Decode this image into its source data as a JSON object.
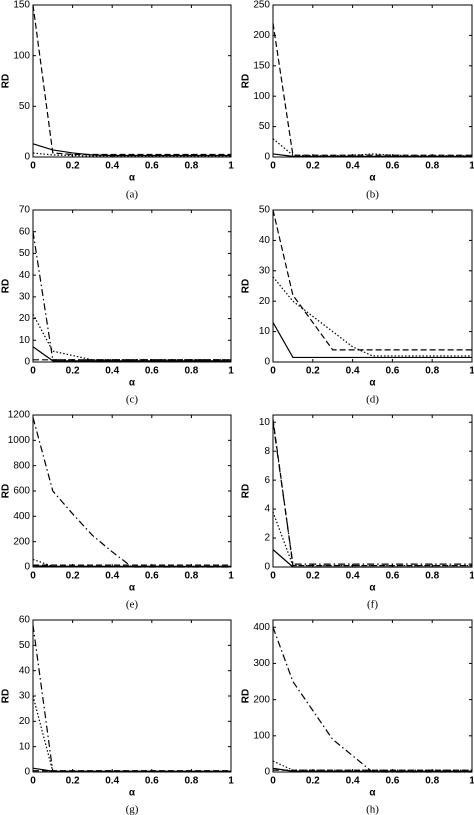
{
  "chart_data": [
    {
      "type": "line",
      "caption": "(a)",
      "xlabel": "α",
      "ylabel": "RD",
      "xlim": [
        0,
        1
      ],
      "xticks": [
        0,
        0.2,
        0.4,
        0.6,
        0.8,
        1
      ],
      "ylim": [
        0,
        150
      ],
      "yticks": [
        0,
        50,
        100,
        150
      ],
      "x": [
        0,
        0.1,
        0.2,
        0.3,
        0.4,
        0.5,
        0.6,
        0.7,
        0.8,
        0.9,
        1
      ],
      "series": [
        {
          "color": "#000000",
          "dash": "solid",
          "values": [
            13,
            7,
            4,
            2,
            1.5,
            1.5,
            1.5,
            1.5,
            1.5,
            1.5,
            1.5
          ]
        },
        {
          "color": "#000000",
          "dash": "dashed",
          "values": [
            150,
            4,
            2.5,
            2.5,
            2.5,
            2.5,
            2.5,
            2.5,
            2.5,
            2.5,
            2.5
          ]
        },
        {
          "color": "#000000",
          "dash": "dotted",
          "values": [
            4,
            2,
            1.5,
            1,
            1,
            1,
            1,
            1,
            1,
            1,
            1
          ]
        }
      ]
    },
    {
      "type": "line",
      "caption": "(b)",
      "xlabel": "α",
      "ylabel": "RD",
      "xlim": [
        0,
        1
      ],
      "xticks": [
        0,
        0.2,
        0.4,
        0.6,
        0.8,
        1
      ],
      "ylim": [
        0,
        250
      ],
      "yticks": [
        0,
        50,
        100,
        150,
        200,
        250
      ],
      "x": [
        0,
        0.1,
        0.2,
        0.3,
        0.4,
        0.5,
        0.6,
        0.7,
        0.8,
        0.9,
        1
      ],
      "series": [
        {
          "color": "#000000",
          "dash": "dashed",
          "values": [
            220,
            3,
            3,
            3,
            3,
            3,
            3,
            3,
            3,
            3,
            3
          ]
        },
        {
          "color": "#000000",
          "dash": "dotted",
          "values": [
            30,
            3,
            2,
            2,
            3,
            5,
            3,
            2,
            2,
            2,
            2
          ]
        },
        {
          "color": "#000000",
          "dash": "solid",
          "values": [
            5,
            1,
            1,
            1,
            1,
            1,
            1,
            1,
            1,
            1,
            1
          ]
        }
      ]
    },
    {
      "type": "line",
      "caption": "(c)",
      "xlabel": "α",
      "ylabel": "RD",
      "xlim": [
        0,
        1
      ],
      "xticks": [
        0,
        0.2,
        0.4,
        0.6,
        0.8,
        1
      ],
      "ylim": [
        0,
        70
      ],
      "yticks": [
        0,
        10,
        20,
        30,
        40,
        50,
        60,
        70
      ],
      "x": [
        0,
        0.1,
        0.2,
        0.3,
        0.4,
        0.5,
        0.6,
        0.7,
        0.8,
        0.9,
        1
      ],
      "series": [
        {
          "color": "#000000",
          "dash": "dashdot",
          "values": [
            60,
            1,
            1,
            1,
            1,
            1,
            1,
            1,
            1,
            1,
            1
          ]
        },
        {
          "color": "#000000",
          "dash": "dotted",
          "values": [
            22,
            5,
            3,
            1,
            1,
            1,
            1,
            1,
            1,
            1,
            1
          ]
        },
        {
          "color": "#000000",
          "dash": "solid",
          "values": [
            7,
            0.5,
            0.5,
            0.5,
            0.5,
            0.5,
            0.5,
            0.5,
            0.5,
            0.5,
            0.5
          ]
        },
        {
          "color": "#000000",
          "dash": "dashed",
          "values": [
            1,
            1,
            1,
            1,
            1,
            1,
            1,
            1,
            1,
            1,
            1
          ]
        }
      ]
    },
    {
      "type": "line",
      "caption": "(d)",
      "xlabel": "α",
      "ylabel": "RD",
      "xlim": [
        0,
        1
      ],
      "xticks": [
        0,
        0.2,
        0.4,
        0.6,
        0.8,
        1
      ],
      "ylim": [
        0,
        50
      ],
      "yticks": [
        0,
        10,
        20,
        30,
        40,
        50
      ],
      "x": [
        0,
        0.1,
        0.2,
        0.3,
        0.4,
        0.5,
        0.6,
        0.7,
        0.8,
        0.9,
        1
      ],
      "series": [
        {
          "color": "#000000",
          "dash": "dashed",
          "values": [
            50,
            22,
            13,
            4,
            4,
            4,
            4,
            4,
            4,
            4,
            4
          ]
        },
        {
          "color": "#000000",
          "dash": "dotted",
          "values": [
            28,
            20,
            15,
            10,
            5,
            2,
            2,
            2,
            2,
            2,
            2
          ]
        },
        {
          "color": "#000000",
          "dash": "solid",
          "values": [
            13,
            1.5,
            1.5,
            1.5,
            1.5,
            1.5,
            1.5,
            1.5,
            1.5,
            1.5,
            1.5
          ]
        }
      ]
    },
    {
      "type": "line",
      "caption": "(e)",
      "xlabel": "α",
      "ylabel": "RD",
      "xlim": [
        0,
        1
      ],
      "xticks": [
        0,
        0.2,
        0.4,
        0.6,
        0.8,
        1
      ],
      "ylim": [
        0,
        1200
      ],
      "yticks": [
        0,
        200,
        400,
        600,
        800,
        1000,
        1200
      ],
      "x": [
        0,
        0.1,
        0.2,
        0.3,
        0.4,
        0.5,
        0.6,
        0.7,
        0.8,
        0.9,
        1
      ],
      "series": [
        {
          "color": "#000000",
          "dash": "dashdot",
          "values": [
            1180,
            600,
            420,
            250,
            120,
            0,
            0,
            0,
            0,
            0,
            0
          ]
        },
        {
          "color": "#000000",
          "dash": "dotted",
          "values": [
            60,
            5,
            5,
            5,
            5,
            5,
            5,
            5,
            5,
            5,
            5
          ]
        },
        {
          "color": "#000000",
          "dash": "solid",
          "values": [
            10,
            5,
            5,
            5,
            5,
            5,
            5,
            5,
            5,
            5,
            5
          ]
        },
        {
          "color": "#000000",
          "dash": "dashed",
          "values": [
            15,
            15,
            15,
            15,
            15,
            15,
            15,
            15,
            15,
            15,
            15
          ]
        }
      ]
    },
    {
      "type": "line",
      "caption": "(f)",
      "xlabel": "α",
      "ylabel": "RD",
      "xlim": [
        0,
        1
      ],
      "xticks": [
        0,
        0.2,
        0.4,
        0.6,
        0.8,
        1
      ],
      "ylim": [
        0,
        10.5
      ],
      "yticks": [
        0,
        2,
        4,
        6,
        8,
        10
      ],
      "x": [
        0,
        0.1,
        0.2,
        0.3,
        0.4,
        0.5,
        0.6,
        0.7,
        0.8,
        0.9,
        1
      ],
      "series": [
        {
          "color": "#000000",
          "dash": "dashed",
          "values": [
            10.2,
            0.1,
            0.1,
            0.1,
            0.1,
            0.1,
            0.1,
            0.1,
            0.1,
            0.1,
            0.1
          ]
        },
        {
          "color": "#000000",
          "dash": "dashdot",
          "values": [
            10,
            0.2,
            0.2,
            0.2,
            0.2,
            0.2,
            0.2,
            0.2,
            0.2,
            0.2,
            0.2
          ]
        },
        {
          "color": "#000000",
          "dash": "dotted",
          "values": [
            3.8,
            0.1,
            0.1,
            0.1,
            0.1,
            0.1,
            0.1,
            0.1,
            0.1,
            0.1,
            0.1
          ]
        },
        {
          "color": "#000000",
          "dash": "solid",
          "values": [
            1.2,
            0,
            0,
            0,
            0,
            0,
            0,
            0,
            0,
            0,
            0
          ]
        }
      ]
    },
    {
      "type": "line",
      "caption": "(g)",
      "xlabel": "α",
      "ylabel": "RD",
      "xlim": [
        0,
        1
      ],
      "xticks": [
        0,
        0.2,
        0.4,
        0.6,
        0.8,
        1
      ],
      "ylim": [
        0,
        60
      ],
      "yticks": [
        0,
        10,
        20,
        30,
        40,
        50,
        60
      ],
      "x": [
        0,
        0.1,
        0.2,
        0.3,
        0.4,
        0.5,
        0.6,
        0.7,
        0.8,
        0.9,
        1
      ],
      "series": [
        {
          "color": "#000000",
          "dash": "dashdot",
          "values": [
            58,
            0.2,
            0.2,
            0.2,
            0.2,
            0.2,
            0.2,
            0.2,
            0.2,
            0.2,
            0.2
          ]
        },
        {
          "color": "#000000",
          "dash": "dotted",
          "values": [
            30,
            0.2,
            0.2,
            0.2,
            0.2,
            0.2,
            0.2,
            0.2,
            0.2,
            0.2,
            0.2
          ]
        },
        {
          "color": "#000000",
          "dash": "solid",
          "values": [
            1.5,
            0.3,
            0.3,
            0.3,
            0.3,
            0.3,
            0.3,
            0.3,
            0.3,
            0.3,
            0.3
          ]
        },
        {
          "color": "#000000",
          "dash": "dashed",
          "values": [
            0.5,
            0.5,
            0.5,
            0.5,
            0.5,
            0.5,
            0.5,
            0.5,
            0.5,
            0.5,
            0.5
          ]
        }
      ]
    },
    {
      "type": "line",
      "caption": "(h)",
      "xlabel": "α",
      "ylabel": "RD",
      "xlim": [
        0,
        1
      ],
      "xticks": [
        0,
        0.2,
        0.4,
        0.6,
        0.8,
        1
      ],
      "ylim": [
        0,
        420
      ],
      "yticks": [
        0,
        100,
        200,
        300,
        400
      ],
      "x": [
        0,
        0.1,
        0.2,
        0.3,
        0.4,
        0.5,
        0.6,
        0.7,
        0.8,
        0.9,
        1
      ],
      "series": [
        {
          "color": "#000000",
          "dash": "dashdot",
          "values": [
            400,
            250,
            170,
            90,
            45,
            0,
            0,
            0,
            0,
            0,
            0
          ]
        },
        {
          "color": "#000000",
          "dash": "dotted",
          "values": [
            30,
            5,
            5,
            5,
            5,
            5,
            5,
            5,
            5,
            5,
            5
          ]
        },
        {
          "color": "#000000",
          "dash": "solid",
          "values": [
            10,
            2,
            2,
            2,
            2,
            2,
            2,
            2,
            2,
            2,
            2
          ]
        },
        {
          "color": "#000000",
          "dash": "dashed",
          "values": [
            5,
            5,
            5,
            5,
            5,
            5,
            5,
            5,
            5,
            5,
            5
          ]
        }
      ]
    }
  ]
}
